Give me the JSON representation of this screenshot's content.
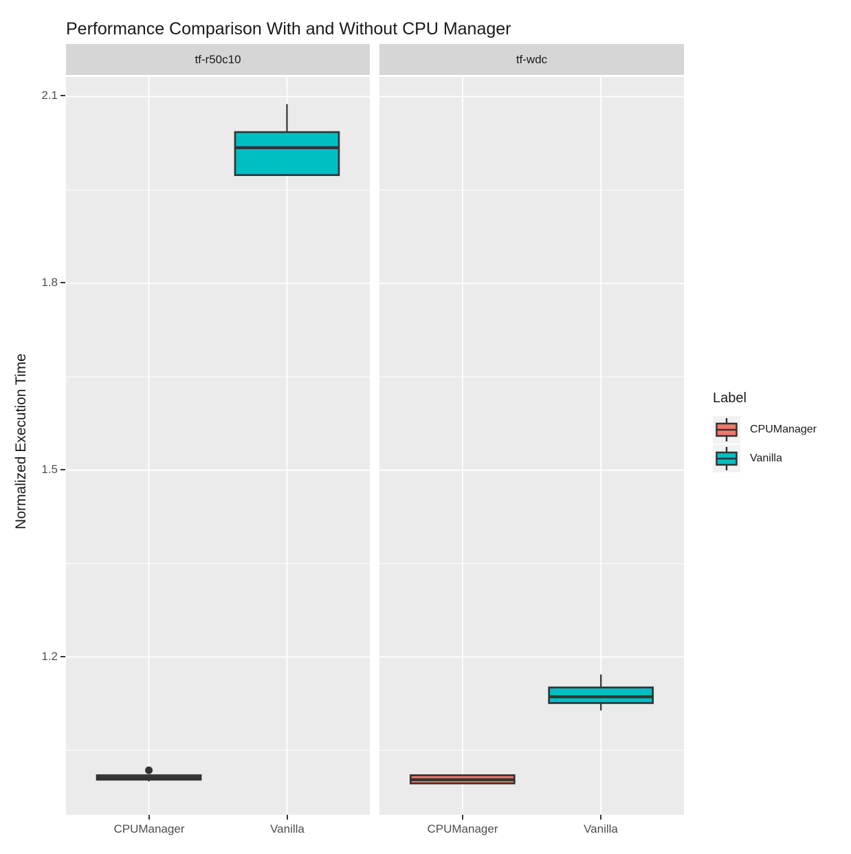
{
  "title": "Performance Comparison With and Without CPU Manager",
  "y_axis": {
    "label": "Normalized Execution Time",
    "tick_labels": [
      "2.1",
      "1.8",
      "1.5",
      "1.2"
    ]
  },
  "legend": {
    "title": "Label",
    "items": [
      {
        "label": "CPUManager",
        "color": "#F8766D"
      },
      {
        "label": "Vanilla",
        "color": "#00BFC4"
      }
    ]
  },
  "colors": {
    "panel_background": "#EBEBEB",
    "strip_background": "#D6D6D6",
    "gridline": "#FFFFFF",
    "box_outline": "#333333",
    "cpumanager_fill": "#F8766D",
    "vanilla_fill": "#00BFC4"
  },
  "chart_data": {
    "type": "boxplot",
    "title": "Performance Comparison With and Without CPU Manager",
    "ylabel": "Normalized Execution Time",
    "xlabel": "",
    "ylim": [
      0.9465,
      2.1315
    ],
    "y_ticks": [
      1.2,
      1.5,
      1.8,
      2.1
    ],
    "y_minor_ticks": [
      1.05,
      1.35,
      1.65,
      1.95
    ],
    "grid": "white-on-grey",
    "legend_position": "right",
    "facets": [
      {
        "label": "tf-r50c10",
        "categories": [
          "CPUManager",
          "Vanilla"
        ],
        "boxes": [
          {
            "category": "CPUManager",
            "group": "CPUManager",
            "whisker_low": 1.0,
            "q1": 1.003,
            "median": 1.006,
            "q3": 1.01,
            "whisker_high": 1.01,
            "outliers": [
              1.018
            ]
          },
          {
            "category": "Vanilla",
            "group": "Vanilla",
            "whisker_low": 1.974,
            "q1": 1.974,
            "median": 2.018,
            "q3": 2.043,
            "whisker_high": 2.088,
            "outliers": []
          }
        ]
      },
      {
        "label": "tf-wdc",
        "categories": [
          "CPUManager",
          "Vanilla"
        ],
        "boxes": [
          {
            "category": "CPUManager",
            "group": "CPUManager",
            "whisker_low": 0.997,
            "q1": 0.997,
            "median": 1.003,
            "q3": 1.01,
            "whisker_high": 1.01,
            "outliers": []
          },
          {
            "category": "Vanilla",
            "group": "Vanilla",
            "whisker_low": 1.114,
            "q1": 1.126,
            "median": 1.136,
            "q3": 1.151,
            "whisker_high": 1.172,
            "outliers": []
          }
        ]
      }
    ]
  }
}
